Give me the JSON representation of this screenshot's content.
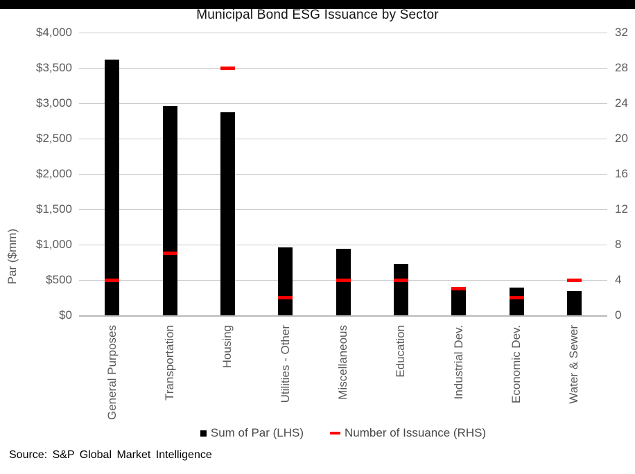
{
  "chart_data": {
    "type": "combo-bar-dash",
    "title": "Municipal Bond ESG Issuance by Sector",
    "categories": [
      "General Purposes",
      "Transportation",
      "Housing",
      "Utilities - Other",
      "Miscellaneous",
      "Education",
      "Industrial Dev.",
      "Economic Dev.",
      "Water & Sewer"
    ],
    "series": [
      {
        "name": "Sum of Par (LHS)",
        "type": "bar",
        "axis": "left",
        "color": "#000000",
        "values": [
          3620,
          2960,
          2870,
          965,
          940,
          725,
          355,
          395,
          345
        ]
      },
      {
        "name": "Number of Issuance (RHS)",
        "type": "dash",
        "axis": "right",
        "color": "#ff0000",
        "values": [
          4,
          7,
          28,
          2,
          4,
          4,
          3,
          2,
          4
        ]
      }
    ],
    "left_axis": {
      "label": "Par ($mm)",
      "min": 0,
      "max": 4000,
      "step": 500,
      "ticks": [
        "$4,000",
        "$3,500",
        "$3,000",
        "$2,500",
        "$2,000",
        "$1,500",
        "$1,000",
        "$500",
        "$0"
      ]
    },
    "right_axis": {
      "min": 0,
      "max": 32,
      "step": 4,
      "ticks": [
        "32",
        "28",
        "24",
        "20",
        "16",
        "12",
        "8",
        "4",
        "0"
      ]
    },
    "grid": true,
    "legend_position": "bottom"
  },
  "source": "Source: S&P Global Market Intelligence",
  "colors": {
    "bar": "#000000",
    "marker": "#ff0000",
    "gridline": "#c9c9c9",
    "axis_text": "#595959",
    "top_bar": "#000000"
  }
}
